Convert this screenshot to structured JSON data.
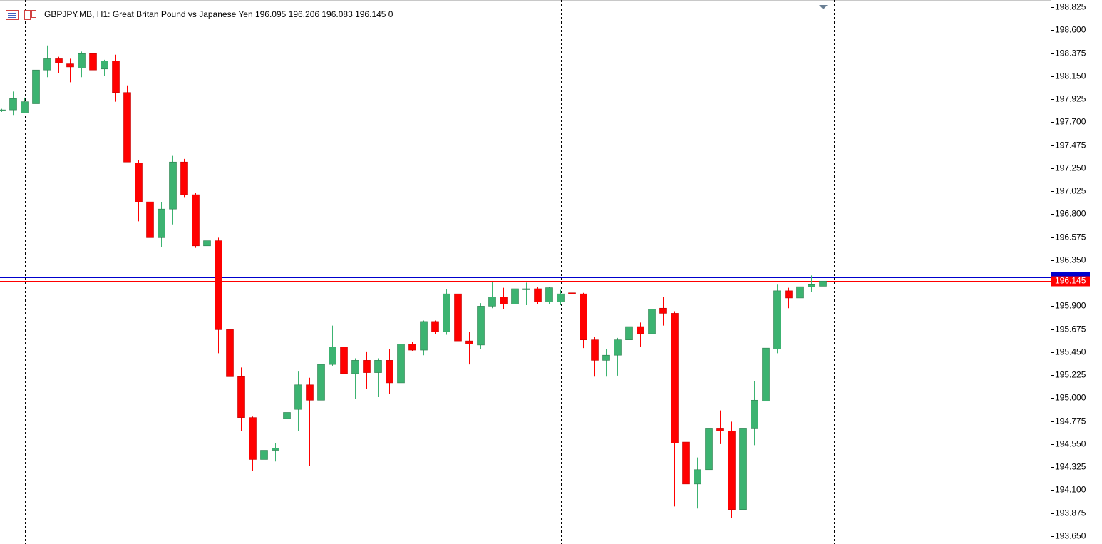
{
  "chart_data": {
    "type": "candlestick",
    "title": "GBPJPY.MB, H1:  Great Britan Pound vs Japanese Yen  196.095 196.206 196.083 196.145  0",
    "open": [
      197.81,
      197.82,
      197.79,
      197.88,
      198.21,
      198.32,
      198.27,
      198.23,
      198.37,
      198.22,
      198.3,
      197.99,
      197.3,
      196.92,
      196.57,
      196.85,
      197.31,
      196.99,
      196.49,
      196.54,
      195.67,
      195.21,
      194.81,
      194.4,
      194.49,
      194.8,
      194.89,
      195.13,
      194.98,
      195.33,
      195.5,
      195.24,
      195.37,
      195.25,
      195.37,
      195.15,
      195.53,
      195.47,
      195.75,
      195.65,
      196.02,
      195.56,
      195.52,
      195.9,
      195.99,
      195.92,
      196.06,
      196.07,
      195.94,
      195.94,
      196.03,
      196.02,
      195.57,
      195.37,
      195.42,
      195.57,
      195.7,
      195.63,
      195.88,
      195.83,
      194.57,
      194.16,
      194.3,
      194.7,
      194.68,
      193.91,
      194.7,
      194.97,
      195.48,
      196.05,
      195.98,
      196.09,
      196.095
    ],
    "high": [
      197.83,
      198.0,
      197.94,
      198.24,
      198.45,
      198.34,
      198.32,
      198.39,
      198.41,
      198.31,
      198.36,
      198.06,
      197.33,
      197.24,
      196.92,
      197.37,
      197.34,
      197.01,
      196.82,
      196.57,
      195.76,
      195.3,
      194.82,
      194.77,
      194.56,
      194.95,
      195.26,
      195.2,
      195.99,
      195.71,
      195.6,
      195.39,
      195.45,
      195.39,
      195.48,
      195.55,
      195.55,
      195.76,
      195.76,
      196.07,
      196.14,
      195.65,
      195.93,
      196.14,
      196.08,
      196.09,
      196.13,
      196.09,
      196.09,
      196.06,
      196.06,
      196.03,
      195.6,
      195.48,
      195.59,
      195.81,
      195.74,
      195.91,
      195.99,
      195.85,
      194.99,
      194.42,
      194.79,
      194.88,
      194.77,
      194.99,
      195.17,
      195.67,
      196.11,
      196.08,
      196.11,
      196.2,
      196.206
    ],
    "low": [
      197.8,
      197.77,
      197.79,
      197.87,
      198.14,
      198.18,
      198.09,
      198.14,
      198.13,
      198.15,
      197.9,
      197.31,
      196.73,
      196.45,
      196.48,
      196.7,
      196.96,
      196.47,
      196.21,
      195.44,
      195.04,
      194.68,
      194.29,
      194.38,
      194.38,
      194.68,
      194.68,
      194.34,
      194.78,
      195.31,
      195.21,
      194.99,
      195.09,
      195.01,
      195.04,
      195.07,
      195.46,
      195.42,
      195.63,
      195.62,
      195.54,
      195.33,
      195.48,
      195.88,
      195.87,
      195.91,
      195.91,
      195.92,
      195.92,
      195.91,
      195.74,
      195.49,
      195.21,
      195.21,
      195.22,
      195.55,
      195.5,
      195.58,
      195.71,
      193.94,
      193.58,
      193.92,
      194.13,
      194.55,
      193.83,
      193.86,
      194.54,
      194.92,
      195.44,
      195.88,
      195.96,
      196.04,
      196.083
    ],
    "close": [
      197.82,
      197.93,
      197.9,
      198.21,
      198.32,
      198.28,
      198.24,
      198.37,
      198.21,
      198.3,
      197.99,
      197.31,
      196.92,
      196.57,
      196.85,
      197.31,
      196.99,
      196.49,
      196.54,
      195.67,
      195.21,
      194.81,
      194.4,
      194.49,
      194.51,
      194.86,
      195.13,
      194.98,
      195.33,
      195.5,
      195.24,
      195.37,
      195.25,
      195.37,
      195.15,
      195.53,
      195.47,
      195.75,
      195.65,
      196.02,
      195.56,
      195.53,
      195.9,
      195.99,
      195.92,
      196.07,
      196.07,
      195.94,
      196.08,
      196.02,
      196.02,
      195.57,
      195.37,
      195.42,
      195.57,
      195.7,
      195.63,
      195.87,
      195.83,
      194.56,
      194.16,
      194.3,
      194.7,
      194.68,
      193.91,
      194.7,
      194.98,
      195.49,
      196.05,
      195.98,
      196.09,
      196.11,
      196.145
    ],
    "up_color": "#3cb371",
    "down_color": "#ff0000",
    "ylim": [
      193.573,
      198.895
    ],
    "yticks": [
      198.825,
      {
        "value": 198.6,
        "label": "198.600"
      },
      198.375,
      {
        "value": 198.15,
        "label": "198.150"
      },
      197.925,
      {
        "value": 197.7,
        "label": "197.700"
      },
      197.475,
      {
        "value": 197.25,
        "label": "197.250"
      },
      197.025,
      {
        "value": 196.8,
        "label": "196.800"
      },
      196.575,
      {
        "value": 196.35,
        "label": "196.350"
      },
      {
        "value": 195.9,
        "label": "195.900"
      },
      195.675,
      {
        "value": 195.45,
        "label": "195.450"
      },
      195.225,
      {
        "value": 195,
        "label": "195.000"
      },
      194.775,
      {
        "value": 194.55,
        "label": "194.550"
      },
      194.325,
      {
        "value": 194.1,
        "label": "194.100"
      },
      193.875,
      {
        "value": 193.65,
        "label": "193.650"
      }
    ],
    "ask_price": 196.18,
    "ask_color": "#0000cd",
    "bid_price": 196.145,
    "bid_color": "#ff0000"
  }
}
